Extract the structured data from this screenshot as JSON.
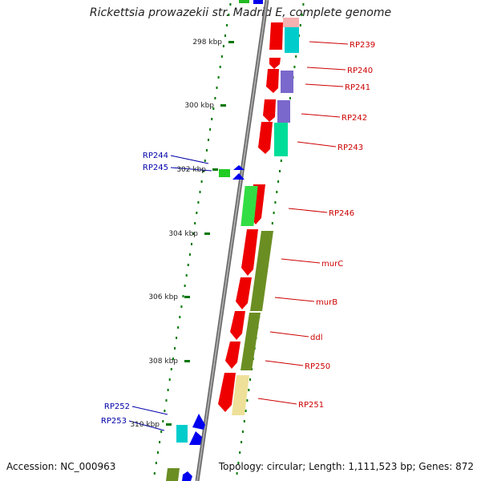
{
  "title": "Rickettsia prowazekii str. Madrid E, complete genome",
  "accession": "Accession: NC_000963",
  "topology": "Topology: circular; Length: 1,111,523 bp; Genes: 872",
  "ticks": [
    {
      "label": "298 kbp"
    },
    {
      "label": "300 kbp"
    },
    {
      "label": "302 kbp"
    },
    {
      "label": "304 kbp"
    },
    {
      "label": "306 kbp"
    },
    {
      "label": "308 kbp"
    },
    {
      "label": "310 kbp"
    }
  ],
  "genes_right": [
    {
      "label": "RP239"
    },
    {
      "label": "RP240"
    },
    {
      "label": "RP241"
    },
    {
      "label": "RP242"
    },
    {
      "label": "RP243"
    },
    {
      "label": "RP246"
    },
    {
      "label": "murC"
    },
    {
      "label": "murB"
    },
    {
      "label": "ddl"
    },
    {
      "label": "RP250"
    },
    {
      "label": "RP251"
    }
  ],
  "genes_left": [
    {
      "label": "RP244"
    },
    {
      "label": "RP245"
    },
    {
      "label": "RP252"
    },
    {
      "label": "RP253"
    }
  ],
  "colors": {
    "cds": "#ee0000",
    "reverse_cds": "#0000ee",
    "backbone": "#888888",
    "ticks": "#007700",
    "right_labels": "#cc0000",
    "left_labels": "#0000aa"
  }
}
